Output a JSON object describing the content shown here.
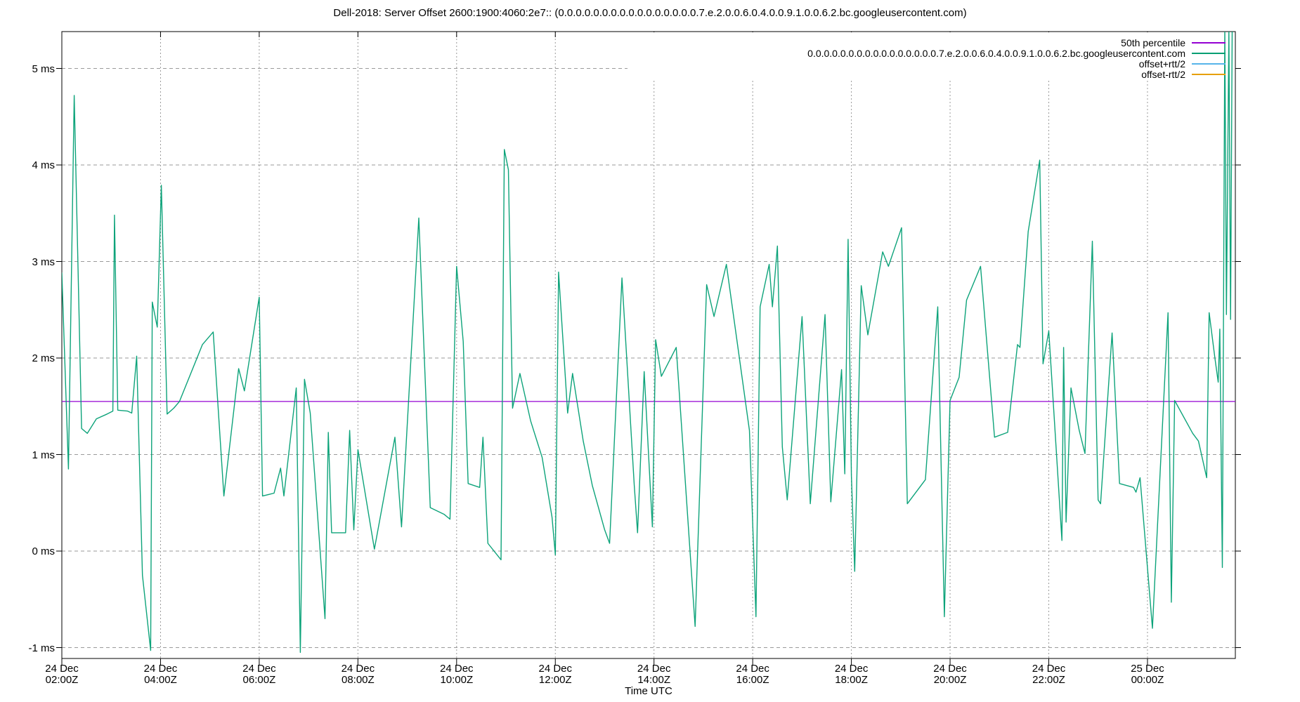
{
  "title": "Dell-2018: Server Offset 2600:1900:4060:2e7:: (0.0.0.0.0.0.0.0.0.0.0.0.0.0.0.0.7.e.2.0.0.6.0.4.0.0.9.1.0.0.6.2.bc.googleusercontent.com)",
  "colors": {
    "background": "#ffffff",
    "border": "#000000",
    "grid": "#9a9a9a",
    "percentile": "#9400D3",
    "offset_line": "#009E73",
    "offset_plus_rtt": "#56B4E9",
    "offset_minus_rtt": "#E69F00"
  },
  "chart_data": {
    "type": "line",
    "title": "Dell-2018: Server Offset 2600:1900:4060:2e7:: (0.0.0.0.0.0.0.0.0.0.0.0.0.0.0.0.7.e.2.0.0.6.0.4.0.0.9.1.0.0.6.2.bc.googleusercontent.com)",
    "xlabel": "Time UTC",
    "ylabel": "",
    "ylim": [
      -1.1,
      5.4
    ],
    "xlim_minutes": [
      0,
      1427
    ],
    "grid": true,
    "legend_position": "top-right-inside-opaque",
    "y_unit": "ms",
    "y_ticks": [
      {
        "value": 5,
        "label": "5 ms"
      },
      {
        "value": 4,
        "label": "4 ms"
      },
      {
        "value": 3,
        "label": "3 ms"
      },
      {
        "value": 2,
        "label": "2 ms"
      },
      {
        "value": 1,
        "label": "1 ms"
      },
      {
        "value": 0,
        "label": "0 ms"
      },
      {
        "value": -1,
        "label": "-1 ms"
      }
    ],
    "x_ticks": [
      {
        "minutes": 0,
        "date": "24 Dec",
        "time": "02:00Z"
      },
      {
        "minutes": 120,
        "date": "24 Dec",
        "time": "04:00Z"
      },
      {
        "minutes": 240,
        "date": "24 Dec",
        "time": "06:00Z"
      },
      {
        "minutes": 360,
        "date": "24 Dec",
        "time": "08:00Z"
      },
      {
        "minutes": 480,
        "date": "24 Dec",
        "time": "10:00Z"
      },
      {
        "minutes": 600,
        "date": "24 Dec",
        "time": "12:00Z"
      },
      {
        "minutes": 720,
        "date": "24 Dec",
        "time": "14:00Z"
      },
      {
        "minutes": 840,
        "date": "24 Dec",
        "time": "16:00Z"
      },
      {
        "minutes": 960,
        "date": "24 Dec",
        "time": "18:00Z"
      },
      {
        "minutes": 1080,
        "date": "24 Dec",
        "time": "20:00Z"
      },
      {
        "minutes": 1200,
        "date": "24 Dec",
        "time": "22:00Z"
      },
      {
        "minutes": 1320,
        "date": "25 Dec",
        "time": "00:00Z"
      }
    ],
    "series": [
      {
        "name": "50th percentile",
        "color": "#9400D3",
        "style": "hline",
        "value_ms": 1.55
      },
      {
        "name": "0.0.0.0.0.0.0.0.0.0.0.0.0.0.0.0.7.e.2.0.0.6.0.4.0.0.9.1.0.0.6.2.bc.googleusercontent.com",
        "color": "#009E73",
        "style": "line",
        "points_min_ms": [
          [
            0,
            2.88
          ],
          [
            8,
            0.85
          ],
          [
            15,
            4.72
          ],
          [
            24,
            1.27
          ],
          [
            31,
            1.22
          ],
          [
            42,
            1.37
          ],
          [
            55,
            1.42
          ],
          [
            62,
            1.45
          ],
          [
            64,
            3.48
          ],
          [
            68,
            1.46
          ],
          [
            80,
            1.45
          ],
          [
            85,
            1.43
          ],
          [
            91,
            2.02
          ],
          [
            98,
            -0.25
          ],
          [
            108,
            -1.03
          ],
          [
            110,
            2.58
          ],
          [
            116,
            2.32
          ],
          [
            121,
            3.79
          ],
          [
            128,
            1.42
          ],
          [
            136,
            1.48
          ],
          [
            143,
            1.55
          ],
          [
            171,
            2.14
          ],
          [
            184,
            2.27
          ],
          [
            197,
            0.57
          ],
          [
            215,
            1.89
          ],
          [
            222,
            1.66
          ],
          [
            240,
            2.63
          ],
          [
            244,
            0.57
          ],
          [
            258,
            0.6
          ],
          [
            266,
            0.86
          ],
          [
            270,
            0.57
          ],
          [
            285,
            1.69
          ],
          [
            290,
            -1.05
          ],
          [
            295,
            1.78
          ],
          [
            302,
            1.43
          ],
          [
            320,
            -0.7
          ],
          [
            324,
            1.23
          ],
          [
            328,
            0.19
          ],
          [
            345,
            0.19
          ],
          [
            350,
            1.25
          ],
          [
            355,
            0.22
          ],
          [
            360,
            1.05
          ],
          [
            380,
            0.02
          ],
          [
            405,
            1.18
          ],
          [
            413,
            0.25
          ],
          [
            434,
            3.45
          ],
          [
            448,
            0.45
          ],
          [
            465,
            0.38
          ],
          [
            472,
            0.33
          ],
          [
            480,
            2.95
          ],
          [
            488,
            2.17
          ],
          [
            494,
            0.7
          ],
          [
            508,
            0.66
          ],
          [
            512,
            1.18
          ],
          [
            518,
            0.08
          ],
          [
            534,
            -0.09
          ],
          [
            538,
            4.16
          ],
          [
            543,
            3.95
          ],
          [
            548,
            1.48
          ],
          [
            557,
            1.84
          ],
          [
            570,
            1.35
          ],
          [
            584,
            0.97
          ],
          [
            596,
            0.35
          ],
          [
            600,
            -0.04
          ],
          [
            604,
            2.89
          ],
          [
            615,
            1.43
          ],
          [
            621,
            1.84
          ],
          [
            634,
            1.14
          ],
          [
            645,
            0.68
          ],
          [
            660,
            0.22
          ],
          [
            666,
            0.08
          ],
          [
            681,
            2.83
          ],
          [
            696,
            0.68
          ],
          [
            700,
            0.19
          ],
          [
            708,
            1.86
          ],
          [
            718,
            0.25
          ],
          [
            722,
            2.19
          ],
          [
            729,
            1.81
          ],
          [
            747,
            2.11
          ],
          [
            770,
            -0.78
          ],
          [
            784,
            2.76
          ],
          [
            793,
            2.43
          ],
          [
            808,
            2.97
          ],
          [
            836,
            1.25
          ],
          [
            844,
            -0.68
          ],
          [
            849,
            2.53
          ],
          [
            860,
            2.97
          ],
          [
            864,
            2.53
          ],
          [
            870,
            3.16
          ],
          [
            876,
            1.08
          ],
          [
            882,
            0.53
          ],
          [
            900,
            2.43
          ],
          [
            910,
            0.49
          ],
          [
            928,
            2.45
          ],
          [
            935,
            0.51
          ],
          [
            948,
            1.88
          ],
          [
            952,
            0.8
          ],
          [
            956,
            3.23
          ],
          [
            960,
            0.78
          ],
          [
            964,
            -0.21
          ],
          [
            972,
            2.75
          ],
          [
            980,
            2.24
          ],
          [
            998,
            3.1
          ],
          [
            1005,
            2.95
          ],
          [
            1021,
            3.35
          ],
          [
            1028,
            0.49
          ],
          [
            1050,
            0.74
          ],
          [
            1065,
            2.53
          ],
          [
            1073,
            -0.68
          ],
          [
            1080,
            1.56
          ],
          [
            1091,
            1.8
          ],
          [
            1100,
            2.6
          ],
          [
            1117,
            2.95
          ],
          [
            1134,
            1.18
          ],
          [
            1150,
            1.23
          ],
          [
            1162,
            2.14
          ],
          [
            1165,
            2.11
          ],
          [
            1175,
            3.31
          ],
          [
            1189,
            4.05
          ],
          [
            1193,
            1.94
          ],
          [
            1200,
            2.28
          ],
          [
            1216,
            0.11
          ],
          [
            1218,
            2.11
          ],
          [
            1221,
            0.3
          ],
          [
            1227,
            1.69
          ],
          [
            1237,
            1.25
          ],
          [
            1244,
            1.01
          ],
          [
            1253,
            3.21
          ],
          [
            1260,
            0.53
          ],
          [
            1263,
            0.49
          ],
          [
            1277,
            2.26
          ],
          [
            1286,
            0.7
          ],
          [
            1303,
            0.66
          ],
          [
            1306,
            0.61
          ],
          [
            1311,
            0.76
          ],
          [
            1326,
            -0.8
          ],
          [
            1345,
            2.47
          ],
          [
            1349,
            -0.53
          ],
          [
            1353,
            1.56
          ],
          [
            1375,
            1.22
          ],
          [
            1382,
            1.14
          ],
          [
            1392,
            0.76
          ],
          [
            1395,
            2.47
          ],
          [
            1402,
            2.0
          ],
          [
            1406,
            1.75
          ],
          [
            1408,
            2.3
          ],
          [
            1411,
            -0.17
          ],
          [
            1414,
            5.42
          ],
          [
            1416,
            2.45
          ],
          [
            1419,
            5.4
          ],
          [
            1421,
            2.4
          ],
          [
            1423,
            5.42
          ]
        ]
      },
      {
        "name": "offset+rtt/2",
        "color": "#56B4E9",
        "style": "line",
        "points_min_ms": []
      },
      {
        "name": "offset-rtt/2",
        "color": "#E69F00",
        "style": "line",
        "points_min_ms": []
      }
    ]
  }
}
